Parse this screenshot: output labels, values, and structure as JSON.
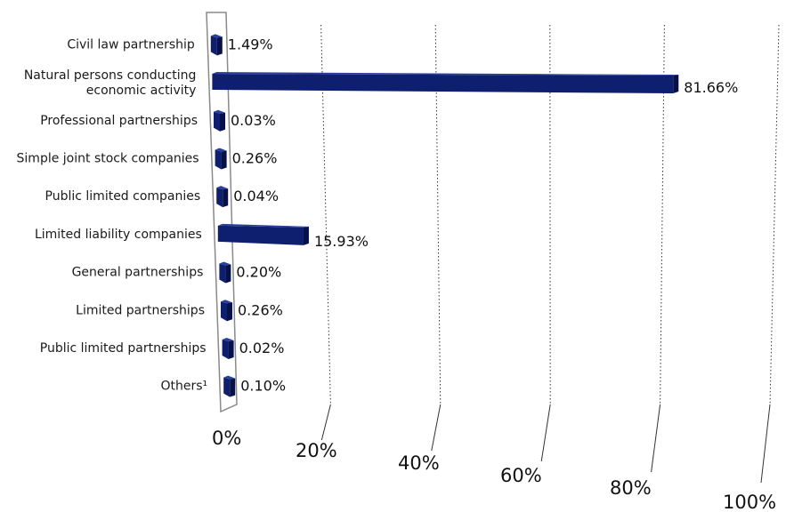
{
  "chart_data": {
    "type": "bar",
    "orientation": "horizontal",
    "style": "3d-perspective",
    "categories": [
      [
        "Civil law partnership"
      ],
      [
        "Natural persons conducting",
        "economic activity"
      ],
      [
        "Professional partnerships"
      ],
      [
        "Simple joint stock companies"
      ],
      [
        "Public limited companies"
      ],
      [
        "Limited liability companies"
      ],
      [
        "General partnerships"
      ],
      [
        "Limited partnerships"
      ],
      [
        "Public limited partnerships"
      ],
      [
        "Others¹"
      ]
    ],
    "values": [
      1.49,
      81.66,
      0.03,
      0.26,
      0.04,
      15.93,
      0.2,
      0.26,
      0.02,
      0.1
    ],
    "value_labels": [
      "1.49%",
      "81.66%",
      "0.03%",
      "0.26%",
      "0.04%",
      "15.93%",
      "0.20%",
      "0.26%",
      "0.02%",
      "0.10%"
    ],
    "xlim": [
      0,
      100
    ],
    "x_ticks": [
      0,
      20,
      40,
      60,
      80,
      100
    ],
    "x_tick_labels": [
      "0%",
      "20%",
      "40%",
      "60%",
      "80%",
      "100%"
    ],
    "grid": true,
    "bar_color": "#0d1f6e",
    "bar_side_color": "#071147",
    "bar_top_color": "#2a3f9a"
  }
}
